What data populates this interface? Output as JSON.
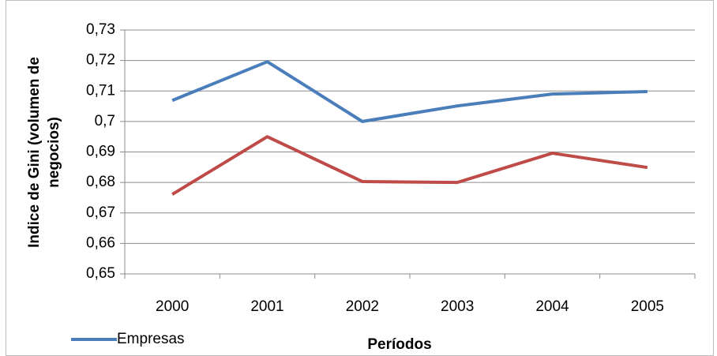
{
  "chart_data": {
    "type": "line",
    "ylabel": [
      "Indice de Gini (volumen de",
      "negocios)"
    ],
    "xlabel": "Períodos",
    "categories": [
      "2000",
      "2001",
      "2002",
      "2003",
      "2004",
      "2005"
    ],
    "series": [
      {
        "name": "Empresas",
        "color": "#4a7ebb",
        "values": [
          0.7069,
          0.7196,
          0.7,
          0.7051,
          0.709,
          0.7098
        ]
      },
      {
        "color": "#be4b48",
        "values": [
          0.6761,
          0.695,
          0.6803,
          0.68,
          0.6896,
          0.6849
        ]
      }
    ],
    "ylim": [
      0.65,
      0.73
    ],
    "yticks": [
      {
        "value": 0.65,
        "label": "0,65"
      },
      {
        "value": 0.66,
        "label": "0,66"
      },
      {
        "value": 0.67,
        "label": "0,67"
      },
      {
        "value": 0.68,
        "label": "0,68"
      },
      {
        "value": 0.69,
        "label": "0,69"
      },
      {
        "value": 0.7,
        "label": "0,7"
      },
      {
        "value": 0.71,
        "label": "0,71"
      },
      {
        "value": 0.72,
        "label": "0,72"
      },
      {
        "value": 0.73,
        "label": "0,73"
      }
    ],
    "grid": true
  }
}
